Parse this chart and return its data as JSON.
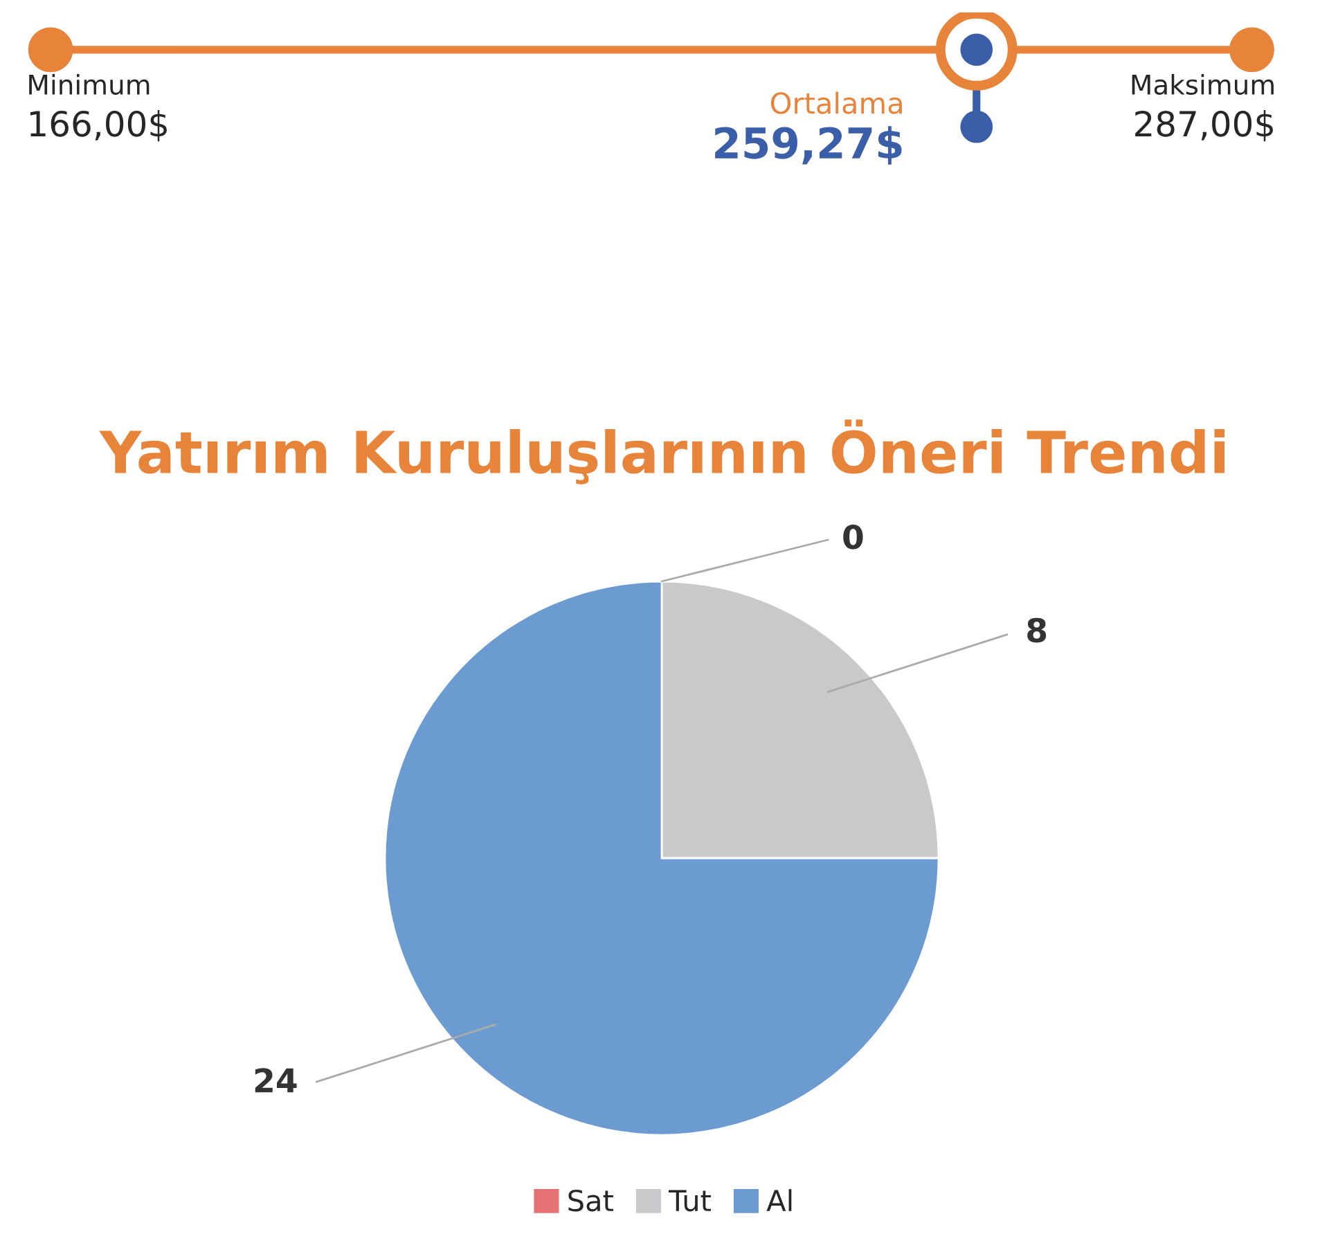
{
  "chart_data": [
    {
      "type": "other",
      "categories": [
        "Minimum",
        "Ortalama",
        "Maksimum"
      ],
      "values": [
        166,
        259.27,
        287
      ],
      "value_labels": [
        "166,00$",
        "259,27$",
        "287,00$"
      ],
      "colors": [
        "#e8833a",
        "#3a5ea8",
        "#e8833a"
      ]
    },
    {
      "type": "pie",
      "title": "Yatırım Kuruluşlarının Öneri Trendi",
      "categories": [
        "Sat",
        "Tut",
        "Al"
      ],
      "values": [
        0,
        8,
        24
      ],
      "colors": [
        "#e57373",
        "#c8c9ca",
        "#6b9bd1"
      ],
      "value_labels": [
        "0",
        "8",
        "24"
      ],
      "legend": "bottom"
    }
  ]
}
